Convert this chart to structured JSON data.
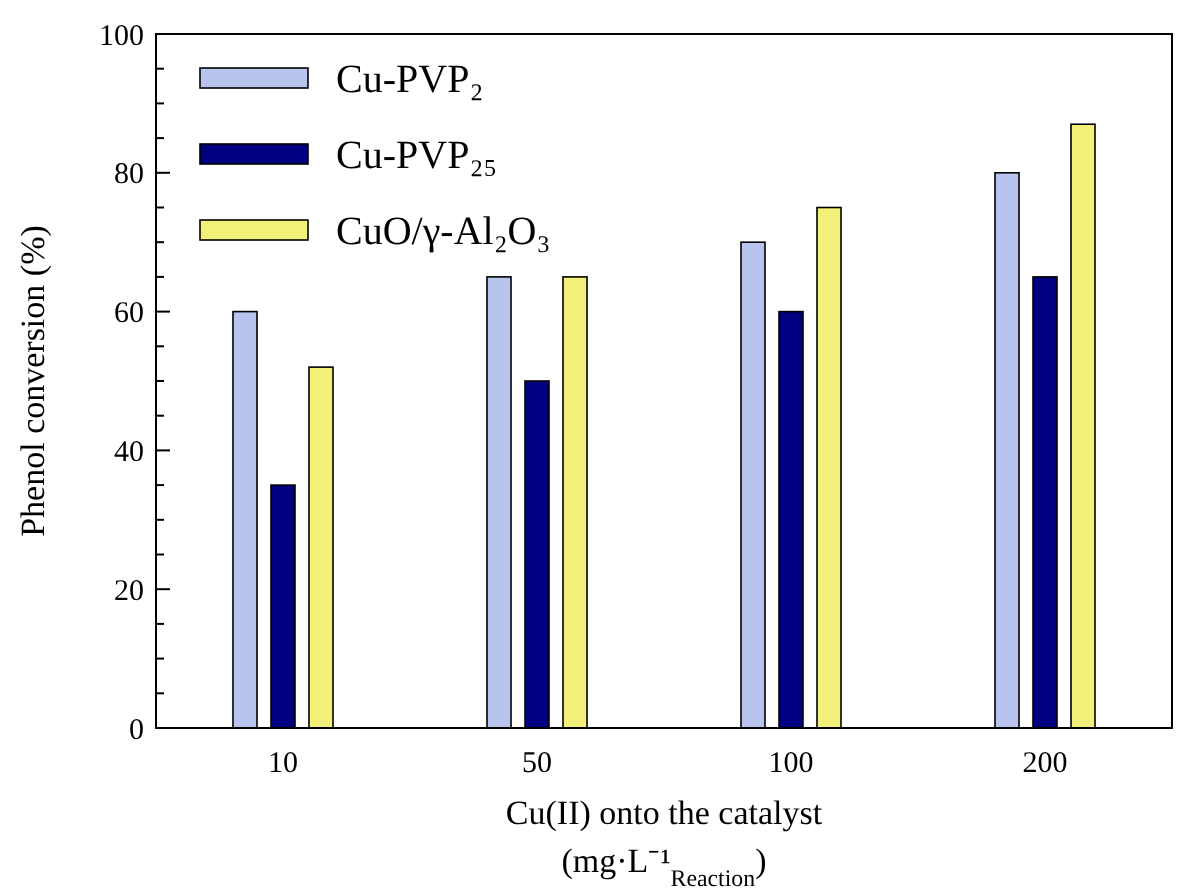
{
  "chart_data": {
    "type": "bar",
    "xlabel": "Cu(II) onto the catalyst\n(mg·L⁻¹$_{Reaction}$)",
    "ylabel": "Phenol conversion (%)",
    "categories": [
      "10",
      "50",
      "100",
      "200"
    ],
    "series": [
      {
        "name": "Cu-PVP₂",
        "color": "#b8c4ee",
        "values": [
          60,
          65,
          70,
          80
        ]
      },
      {
        "name": "Cu-PVP₂₅",
        "color": "#000080",
        "values": [
          35,
          50,
          60,
          65
        ]
      },
      {
        "name": "CuO/γ-Al₂O₃",
        "color": "#f3f07a",
        "values": [
          52,
          65,
          75,
          87
        ]
      }
    ],
    "ylim": [
      0,
      100
    ],
    "yticks": [
      0,
      {
        "value": 5,
        "label": null
      },
      {
        "value": 10,
        "label": null
      },
      {
        "value": 15,
        "label": null
      },
      20,
      {
        "value": 25,
        "label": null
      },
      {
        "value": 30,
        "label": null
      },
      {
        "value": 35,
        "label": null
      },
      40,
      {
        "value": 45,
        "label": null
      },
      {
        "value": 50,
        "label": null
      },
      {
        "value": 55,
        "label": null
      },
      60,
      {
        "value": 65,
        "label": null
      },
      {
        "value": 70,
        "label": null
      },
      {
        "value": 75,
        "label": null
      },
      80,
      {
        "value": 85,
        "label": null
      },
      {
        "value": 90,
        "label": null
      },
      {
        "value": 95,
        "label": null
      },
      100
    ],
    "grid": false,
    "legend": "top left"
  }
}
